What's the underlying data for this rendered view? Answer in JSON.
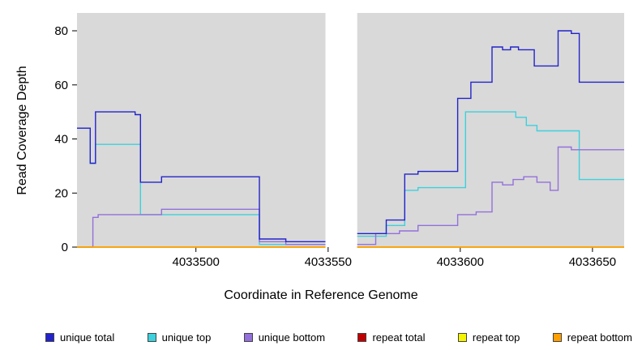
{
  "chart_data": {
    "type": "line",
    "step": true,
    "title": "",
    "xlabel": "Coordinate in Reference Genome",
    "ylabel": "Read Coverage Depth",
    "xlim": [
      4033455,
      4033662
    ],
    "ylim": [
      0,
      80
    ],
    "x_ticks": [
      4033500,
      4033550,
      4033600,
      4033650
    ],
    "y_ticks": [
      0,
      20,
      40,
      60,
      80
    ],
    "gap_x": [
      4033549,
      4033561
    ],
    "plot_bg": "#d9d9d9",
    "grid": false,
    "legend_position": "bottom",
    "series": [
      {
        "name": "unique total",
        "color": "#2323cb",
        "segments": [
          [
            [
              4033455,
              44
            ],
            [
              4033460,
              31
            ],
            [
              4033462,
              50
            ],
            [
              4033477,
              49
            ],
            [
              4033479,
              24
            ],
            [
              4033487,
              26
            ],
            [
              4033524,
              3
            ],
            [
              4033534,
              2
            ],
            [
              4033549,
              2
            ]
          ],
          [
            [
              4033561,
              5
            ],
            [
              4033572,
              10
            ],
            [
              4033579,
              27
            ],
            [
              4033584,
              28
            ],
            [
              4033599,
              55
            ],
            [
              4033604,
              61
            ],
            [
              4033612,
              74
            ],
            [
              4033616,
              73
            ],
            [
              4033619,
              74
            ],
            [
              4033622,
              73
            ],
            [
              4033628,
              67
            ],
            [
              4033637,
              80
            ],
            [
              4033642,
              79
            ],
            [
              4033645,
              61
            ],
            [
              4033662,
              61
            ]
          ]
        ]
      },
      {
        "name": "unique top",
        "color": "#3ed0dc",
        "segments": [
          [
            [
              4033455,
              44
            ],
            [
              4033460,
              31
            ],
            [
              4033462,
              38
            ],
            [
              4033479,
              12
            ],
            [
              4033524,
              1
            ],
            [
              4033549,
              1
            ]
          ],
          [
            [
              4033561,
              4
            ],
            [
              4033572,
              8
            ],
            [
              4033579,
              21
            ],
            [
              4033584,
              22
            ],
            [
              4033602,
              50
            ],
            [
              4033621,
              48
            ],
            [
              4033625,
              45
            ],
            [
              4033629,
              43
            ],
            [
              4033645,
              25
            ],
            [
              4033662,
              25
            ]
          ]
        ]
      },
      {
        "name": "unique bottom",
        "color": "#9370db",
        "segments": [
          [
            [
              4033455,
              0
            ],
            [
              4033461,
              11
            ],
            [
              4033463,
              12
            ],
            [
              4033487,
              14
            ],
            [
              4033524,
              2
            ],
            [
              4033534,
              1
            ],
            [
              4033549,
              1
            ]
          ],
          [
            [
              4033561,
              1
            ],
            [
              4033568,
              5
            ],
            [
              4033577,
              6
            ],
            [
              4033584,
              8
            ],
            [
              4033599,
              12
            ],
            [
              4033606,
              13
            ],
            [
              4033612,
              24
            ],
            [
              4033616,
              23
            ],
            [
              4033620,
              25
            ],
            [
              4033624,
              26
            ],
            [
              4033629,
              24
            ],
            [
              4033634,
              21
            ],
            [
              4033637,
              37
            ],
            [
              4033642,
              36
            ],
            [
              4033662,
              36
            ]
          ]
        ]
      },
      {
        "name": "repeat total",
        "color": "#c00000",
        "segments": [
          [
            [
              4033455,
              0
            ],
            [
              4033549,
              0
            ]
          ],
          [
            [
              4033561,
              0
            ],
            [
              4033662,
              0
            ]
          ]
        ]
      },
      {
        "name": "repeat top",
        "color": "#f5f500",
        "segments": [
          [
            [
              4033455,
              0
            ],
            [
              4033549,
              0
            ]
          ],
          [
            [
              4033561,
              0
            ],
            [
              4033662,
              0
            ]
          ]
        ]
      },
      {
        "name": "repeat bottom",
        "color": "#ff9f00",
        "segments": [
          [
            [
              4033455,
              0
            ],
            [
              4033549,
              0
            ]
          ],
          [
            [
              4033561,
              0
            ],
            [
              4033662,
              0
            ]
          ]
        ]
      }
    ]
  }
}
